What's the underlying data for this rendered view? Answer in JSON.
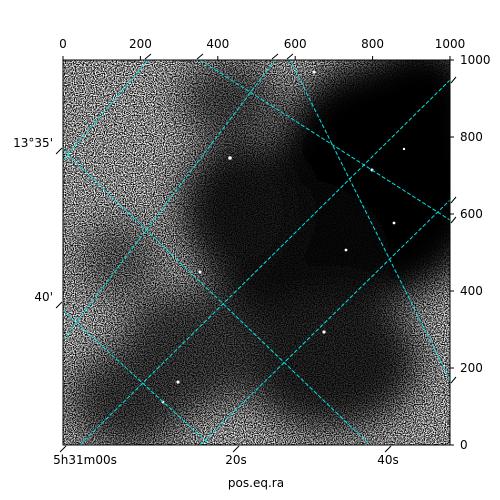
{
  "chart_data": {
    "type": "image",
    "xlabel": "pos.eq.ra",
    "pixel_axes": {
      "x_range": [
        0,
        1000
      ],
      "y_range": [
        0,
        1000
      ],
      "x_ticks": [
        "0",
        "200",
        "400",
        "600",
        "800",
        "1000"
      ],
      "y_ticks": [
        "0",
        "200",
        "400",
        "600",
        "800",
        "1000"
      ]
    },
    "world_axes": {
      "ra_ticks": [
        "5h31m00s",
        "20s",
        "40s"
      ],
      "dec_ticks": [
        "13°35'",
        "40'"
      ]
    },
    "grid": true,
    "grid_color": "#00e5e5",
    "colormap": "gray_r"
  }
}
